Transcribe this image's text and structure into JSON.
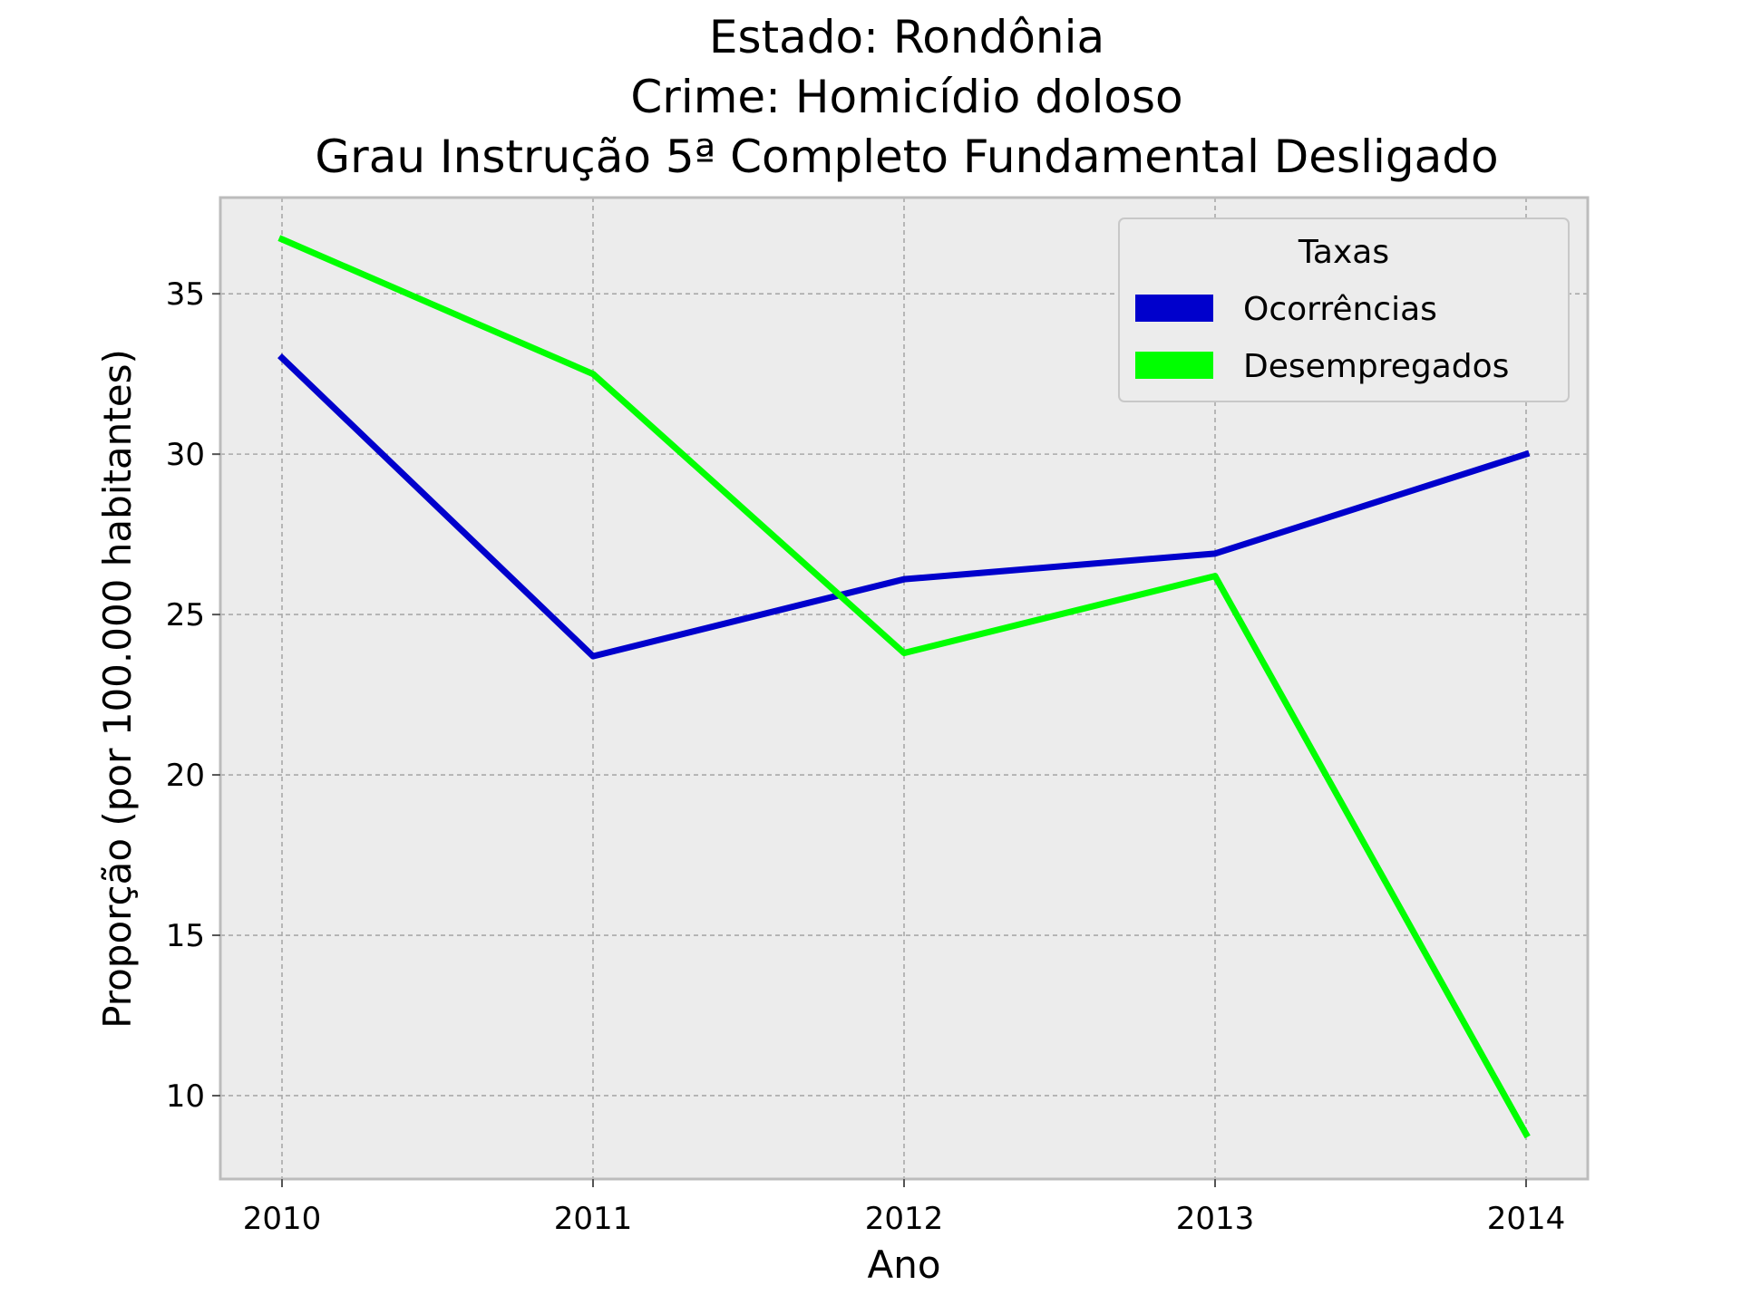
{
  "chart_data": {
    "type": "line",
    "title_lines": [
      "Estado: Rondônia",
      "Crime: Homicídio doloso",
      "Grau Instrução  5ª Completo Fundamental   Desligado"
    ],
    "xlabel": "Ano",
    "ylabel": "Proporção (por 100.000 habitantes)",
    "x": [
      "2010",
      "2011",
      "2012",
      "2013",
      "2014"
    ],
    "yticks": [
      10,
      15,
      20,
      25,
      30,
      35
    ],
    "ylim": [
      7.4,
      38.0
    ],
    "grid": true,
    "legend": {
      "title": "Taxas",
      "placement": "top-right"
    },
    "series": [
      {
        "name": "Ocorrências",
        "color": "#0000cc",
        "values": [
          33.0,
          23.7,
          26.1,
          26.9,
          30.0
        ]
      },
      {
        "name": "Desempregados",
        "color": "#00ff00",
        "values": [
          36.7,
          32.5,
          23.8,
          26.2,
          8.8
        ]
      }
    ],
    "colors": {
      "plot_background": "#ececec",
      "grid": "#a9a9a9",
      "frame": "#bcbcbc"
    }
  }
}
